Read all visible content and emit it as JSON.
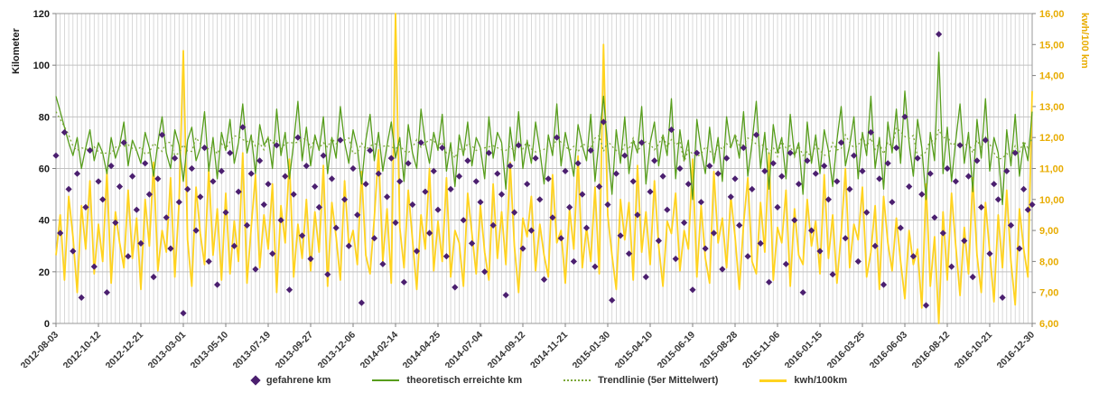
{
  "chart_data": {
    "type": "line+scatter",
    "title": "",
    "legend_position": "bottom-center",
    "left_axis": {
      "label": "Kilometer",
      "min": 0,
      "max": 120,
      "step": 20,
      "ticks": [
        "0",
        "20",
        "40",
        "60",
        "80",
        "100",
        "120"
      ],
      "color": "#1a1a1a"
    },
    "right_axis": {
      "label": "kwh/100 km",
      "min": 6,
      "max": 16,
      "step": 1,
      "ticks": [
        "6,00",
        "7,00",
        "8,00",
        "9,00",
        "10,00",
        "11,00",
        "12,00",
        "13,00",
        "14,00",
        "15,00",
        "16,00"
      ],
      "color": "#E8AC00"
    },
    "x_axis": {
      "unit": "weekly",
      "tick_every": 10,
      "tick_labels": [
        "2012-08-03",
        "2012-10-12",
        "2012-12-21",
        "2013-03-01",
        "2013-05-10",
        "2013-07-19",
        "2013-09-27",
        "2013-12-06",
        "2014-02-14",
        "2014-04-25",
        "2014-07-04",
        "2014-09-12",
        "2014-11-21",
        "2015-01-30",
        "2015-04-10",
        "2015-06-19",
        "2015-08-28",
        "2015-11-06",
        "2016-01-15",
        "2016-03-25",
        "2016-06-03",
        "2016-08-12",
        "2016-10-21",
        "2016-12-30"
      ]
    },
    "grid": {
      "vertical": "weekly",
      "horizontal": "every 20 km"
    },
    "series": [
      {
        "name": "gefahrene km",
        "type": "scatter",
        "marker": "diamond",
        "axis": "left",
        "color": "#4B1F6F",
        "values": [
          65,
          35,
          74,
          52,
          28,
          58,
          10,
          45,
          67,
          22,
          55,
          48,
          12,
          61,
          39,
          53,
          70,
          26,
          57,
          44,
          31,
          62,
          50,
          18,
          56,
          73,
          41,
          29,
          64,
          47,
          4,
          52,
          60,
          36,
          49,
          68,
          24,
          55,
          15,
          59,
          43,
          66,
          30,
          51,
          76,
          38,
          58,
          21,
          63,
          46,
          54,
          27,
          69,
          40,
          57,
          13,
          50,
          72,
          34,
          61,
          25,
          53,
          45,
          65,
          19,
          56,
          37,
          71,
          48,
          30,
          60,
          42,
          8,
          54,
          67,
          33,
          58,
          23,
          49,
          64,
          39,
          55,
          16,
          62,
          46,
          28,
          70,
          51,
          35,
          59,
          44,
          68,
          26,
          52,
          14,
          57,
          40,
          63,
          31,
          55,
          47,
          20,
          66,
          38,
          58,
          50,
          11,
          61,
          43,
          69,
          29,
          54,
          36,
          64,
          48,
          17,
          56,
          41,
          72,
          33,
          59,
          45,
          24,
          62,
          50,
          37,
          67,
          22,
          53,
          78,
          46,
          9,
          58,
          34,
          65,
          27,
          55,
          42,
          70,
          18,
          51,
          63,
          32,
          57,
          44,
          75,
          25,
          60,
          39,
          54,
          13,
          66,
          47,
          29,
          61,
          35,
          58,
          21,
          64,
          49,
          56,
          38,
          68,
          26,
          52,
          73,
          31,
          59,
          16,
          62,
          45,
          57,
          23,
          66,
          40,
          54,
          12,
          63,
          36,
          58,
          28,
          61,
          48,
          19,
          55,
          70,
          33,
          52,
          65,
          24,
          59,
          43,
          74,
          30,
          56,
          15,
          62,
          47,
          68,
          37,
          80,
          53,
          26,
          64,
          50,
          7,
          58,
          41,
          112,
          35,
          60,
          22,
          55,
          69,
          32,
          57,
          18,
          63,
          45,
          71,
          27,
          54,
          48,
          10,
          59,
          38,
          66,
          29,
          52,
          44,
          46
        ]
      },
      {
        "name": "theoretisch erreichte km",
        "type": "line",
        "axis": "left",
        "color": "#579D1C",
        "values": [
          88,
          82,
          76,
          70,
          65,
          72,
          60,
          68,
          75,
          63,
          70,
          66,
          58,
          72,
          64,
          69,
          78,
          61,
          71,
          67,
          62,
          74,
          68,
          57,
          70,
          80,
          66,
          60,
          75,
          69,
          55,
          71,
          76,
          63,
          68,
          82,
          59,
          72,
          56,
          74,
          67,
          79,
          62,
          70,
          85,
          66,
          73,
          58,
          77,
          69,
          72,
          60,
          83,
          65,
          74,
          56,
          70,
          86,
          63,
          76,
          61,
          73,
          67,
          80,
          58,
          72,
          64,
          84,
          70,
          62,
          75,
          68,
          54,
          71,
          81,
          63,
          74,
          59,
          69,
          78,
          64,
          72,
          55,
          77,
          66,
          60,
          83,
          70,
          62,
          74,
          67,
          81,
          59,
          70,
          53,
          73,
          65,
          78,
          61,
          72,
          68,
          56,
          80,
          64,
          74,
          70,
          52,
          76,
          63,
          82,
          60,
          71,
          62,
          78,
          67,
          54,
          73,
          65,
          85,
          61,
          74,
          66,
          57,
          77,
          69,
          63,
          81,
          55,
          72,
          88,
          68,
          50,
          75,
          62,
          80,
          58,
          71,
          66,
          84,
          54,
          70,
          78,
          61,
          73,
          65,
          87,
          56,
          75,
          63,
          71,
          48,
          79,
          67,
          58,
          76,
          62,
          72,
          55,
          80,
          68,
          73,
          64,
          82,
          57,
          70,
          86,
          60,
          74,
          52,
          77,
          66,
          72,
          56,
          81,
          65,
          70,
          50,
          78,
          62,
          73,
          58,
          75,
          67,
          53,
          71,
          84,
          61,
          69,
          80,
          56,
          74,
          65,
          88,
          60,
          72,
          52,
          78,
          66,
          83,
          62,
          90,
          70,
          57,
          79,
          68,
          48,
          74,
          63,
          105,
          58,
          76,
          55,
          71,
          85,
          62,
          74,
          51,
          79,
          64,
          87,
          59,
          72,
          66,
          46,
          75,
          61,
          81,
          57,
          70,
          63,
          82
        ]
      },
      {
        "name": "Trendlinie (5er Mittelwert)",
        "type": "moving_average",
        "window": 5,
        "source": "theoretisch erreichte km",
        "axis": "left",
        "style": "dotted",
        "color": "#7CA839"
      },
      {
        "name": "kwh/100km",
        "type": "line",
        "axis": "right",
        "color": "#FFD320",
        "values": [
          8.2,
          9.5,
          7.4,
          10.1,
          8.8,
          7.0,
          9.8,
          8.4,
          10.6,
          7.6,
          9.2,
          8.0,
          10.9,
          7.3,
          9.6,
          8.6,
          7.8,
          10.3,
          8.1,
          9.4,
          7.1,
          10.0,
          8.5,
          11.2,
          7.7,
          9.0,
          8.3,
          10.7,
          7.5,
          9.9,
          14.8,
          8.7,
          7.2,
          10.4,
          8.9,
          7.9,
          11.0,
          8.2,
          9.7,
          7.4,
          10.2,
          7.6,
          9.3,
          8.0,
          11.5,
          7.3,
          9.1,
          10.8,
          7.8,
          9.5,
          8.4,
          10.5,
          7.0,
          9.8,
          8.6,
          11.3,
          7.5,
          9.2,
          8.1,
          10.0,
          7.7,
          9.6,
          8.3,
          11.1,
          7.2,
          9.9,
          8.8,
          7.4,
          10.6,
          8.5,
          9.0,
          7.9,
          10.9,
          8.2,
          7.6,
          9.4,
          11.6,
          8.0,
          9.7,
          7.3,
          16.0,
          9.1,
          7.8,
          10.3,
          8.7,
          7.1,
          9.5,
          8.4,
          11.0,
          7.7,
          9.3,
          8.0,
          10.7,
          7.5,
          9.0,
          8.6,
          7.2,
          10.2,
          8.9,
          7.6,
          9.8,
          8.3,
          7.4,
          10.5,
          8.1,
          9.6,
          7.9,
          11.2,
          8.5,
          7.0,
          9.4,
          8.8,
          10.1,
          7.7,
          9.2,
          8.2,
          7.5,
          10.8,
          8.6,
          9.0,
          7.3,
          9.7,
          8.4,
          11.4,
          7.8,
          9.1,
          8.0,
          10.4,
          7.6,
          15.0,
          9.5,
          8.2,
          7.1,
          10.0,
          8.7,
          9.9,
          7.4,
          11.1,
          8.3,
          9.6,
          7.9,
          10.6,
          8.5,
          7.2,
          9.3,
          8.9,
          10.2,
          7.7,
          9.0,
          8.4,
          11.3,
          7.5,
          9.8,
          8.1,
          7.3,
          10.9,
          8.6,
          9.4,
          7.8,
          10.1,
          8.8,
          7.1,
          9.2,
          10.7,
          8.0,
          7.6,
          9.9,
          8.3,
          11.5,
          7.4,
          9.1,
          8.6,
          10.3,
          7.2,
          9.7,
          8.2,
          7.9,
          10.0,
          8.5,
          9.3,
          7.6,
          10.8,
          8.1,
          9.5,
          7.3,
          8.9,
          11.0,
          7.8,
          9.2,
          8.7,
          10.4,
          7.5,
          8.3,
          9.8,
          7.1,
          10.1,
          8.6,
          7.7,
          9.4,
          8.0,
          6.8,
          9.0,
          7.9,
          8.4,
          6.5,
          10.5,
          7.2,
          8.8,
          6.0,
          9.6,
          7.4,
          10.2,
          8.5,
          6.9,
          9.1,
          7.6,
          10.7,
          8.2,
          7.0,
          9.9,
          8.3,
          6.7,
          9.5,
          7.8,
          10.3,
          8.0,
          6.6,
          9.7,
          8.4,
          7.5,
          13.5
        ]
      }
    ]
  }
}
